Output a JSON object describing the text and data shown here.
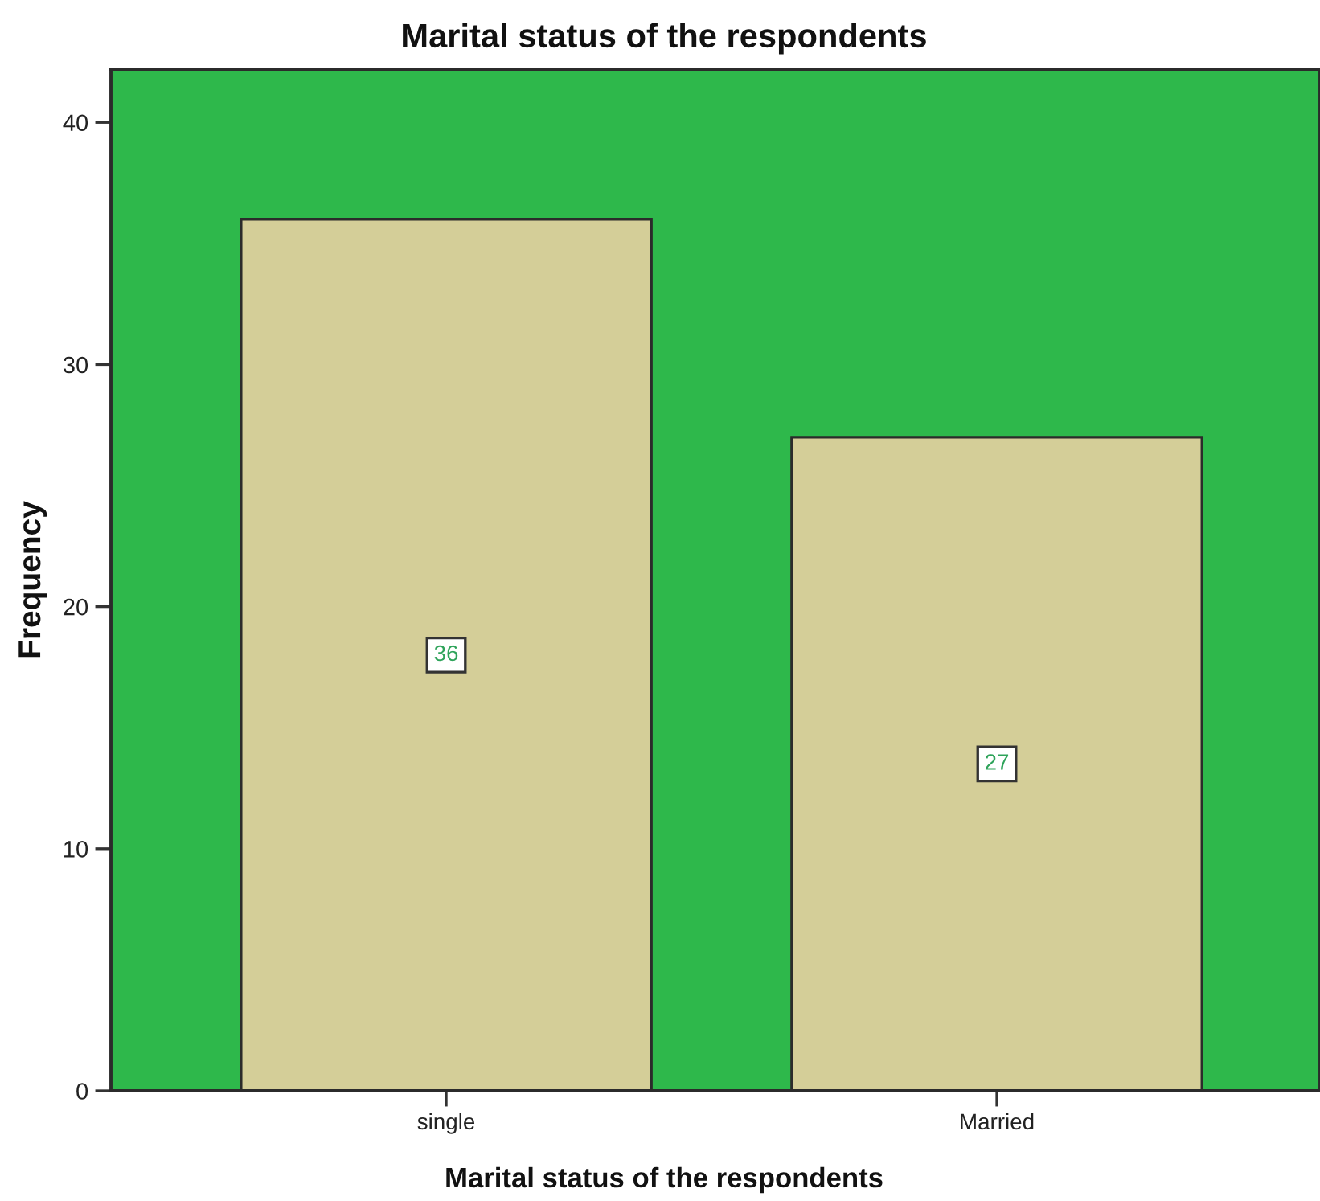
{
  "chart_data": {
    "type": "bar",
    "title": "Marital status of the respondents",
    "xlabel": "Marital status of the respondents",
    "ylabel": "Frequency",
    "categories": [
      "single",
      "Married"
    ],
    "values": [
      36,
      27
    ],
    "color": "#d4ce98",
    "ylim": [
      0,
      42.2
    ],
    "yticks": [
      0,
      10,
      20,
      30,
      40
    ],
    "data_labels": true,
    "bands": [
      {
        "axis": "y",
        "from": 0,
        "to": 42.2,
        "color": "#2eb84b"
      }
    ]
  }
}
